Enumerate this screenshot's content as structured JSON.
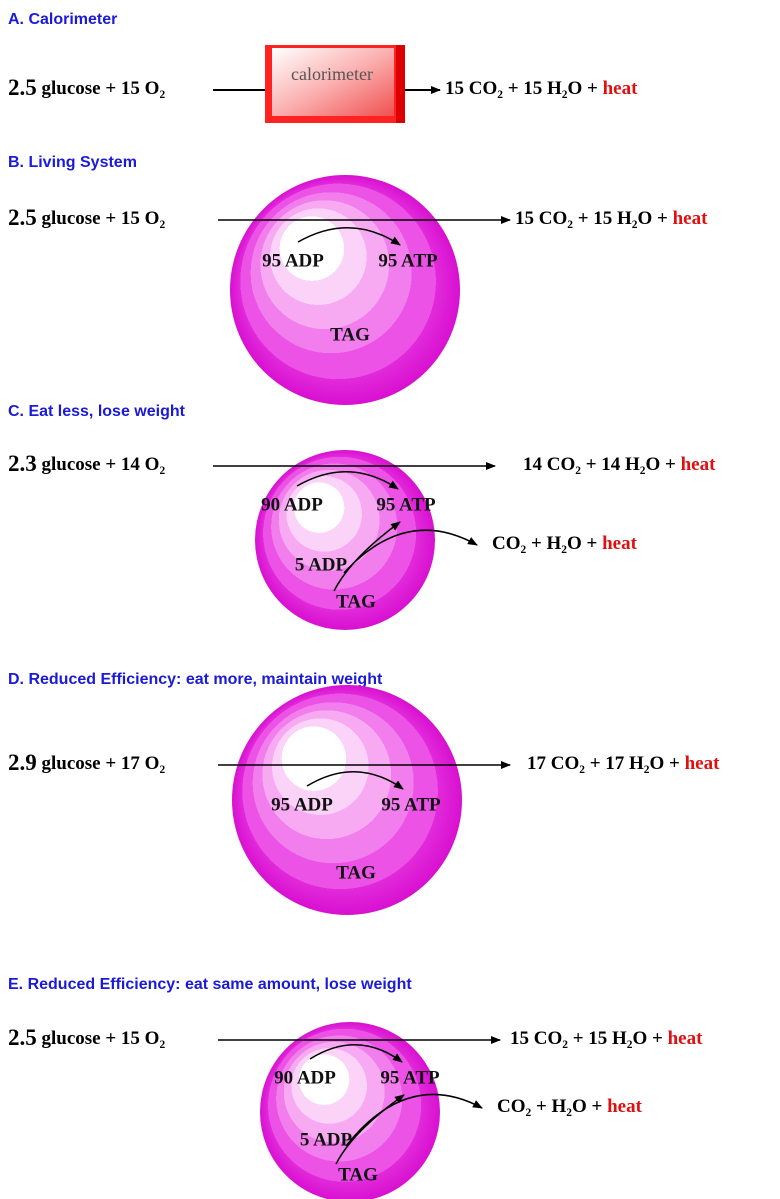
{
  "sections": [
    {
      "title": "A. Calorimeter",
      "left": {
        "coefficient": "2.5",
        "rest": "glucose + 15 O₂"
      },
      "device": "calorimeter",
      "right": {
        "products": "15 CO₂ + 15 H₂O +",
        "heat": "heat"
      }
    },
    {
      "title": "B. Living System",
      "left": {
        "coefficient": "2.5",
        "rest": "glucose + 15 O₂"
      },
      "sphere": {
        "adp": "95 ADP",
        "atp": "95 ATP",
        "tag": "TAG"
      },
      "right": {
        "products": "15 CO₂ + 15 H₂O +",
        "heat": "heat"
      }
    },
    {
      "title": "C. Eat less, lose weight",
      "left": {
        "coefficient": "2.3",
        "rest": "glucose + 14 O₂"
      },
      "sphere": {
        "adp": "90 ADP",
        "atp": "95 ATP",
        "extra_adp": "5 ADP",
        "tag": "TAG"
      },
      "right": {
        "products": "14 CO₂ + 14 H₂O +",
        "heat": "heat"
      },
      "branch": {
        "products": "CO₂ + H₂O +",
        "heat": "heat"
      }
    },
    {
      "title": "D. Reduced Efficiency: eat more, maintain weight",
      "left": {
        "coefficient": "2.9",
        "rest": "glucose + 17 O₂"
      },
      "sphere": {
        "adp": "95 ADP",
        "atp": "95 ATP",
        "tag": "TAG"
      },
      "right": {
        "products": "17 CO₂ + 17 H₂O +",
        "heat": "heat"
      }
    },
    {
      "title": "E. Reduced Efficiency: eat same amount, lose weight",
      "left": {
        "coefficient": "2.5",
        "rest": "glucose + 15 O₂"
      },
      "sphere": {
        "adp": "90 ADP",
        "atp": "95 ATP",
        "extra_adp": "5 ADP",
        "tag": "TAG"
      },
      "right": {
        "products": "15 CO₂ + 15 H₂O +",
        "heat": "heat"
      },
      "branch": {
        "products": "CO₂ + H₂O +",
        "heat": "heat"
      }
    }
  ]
}
